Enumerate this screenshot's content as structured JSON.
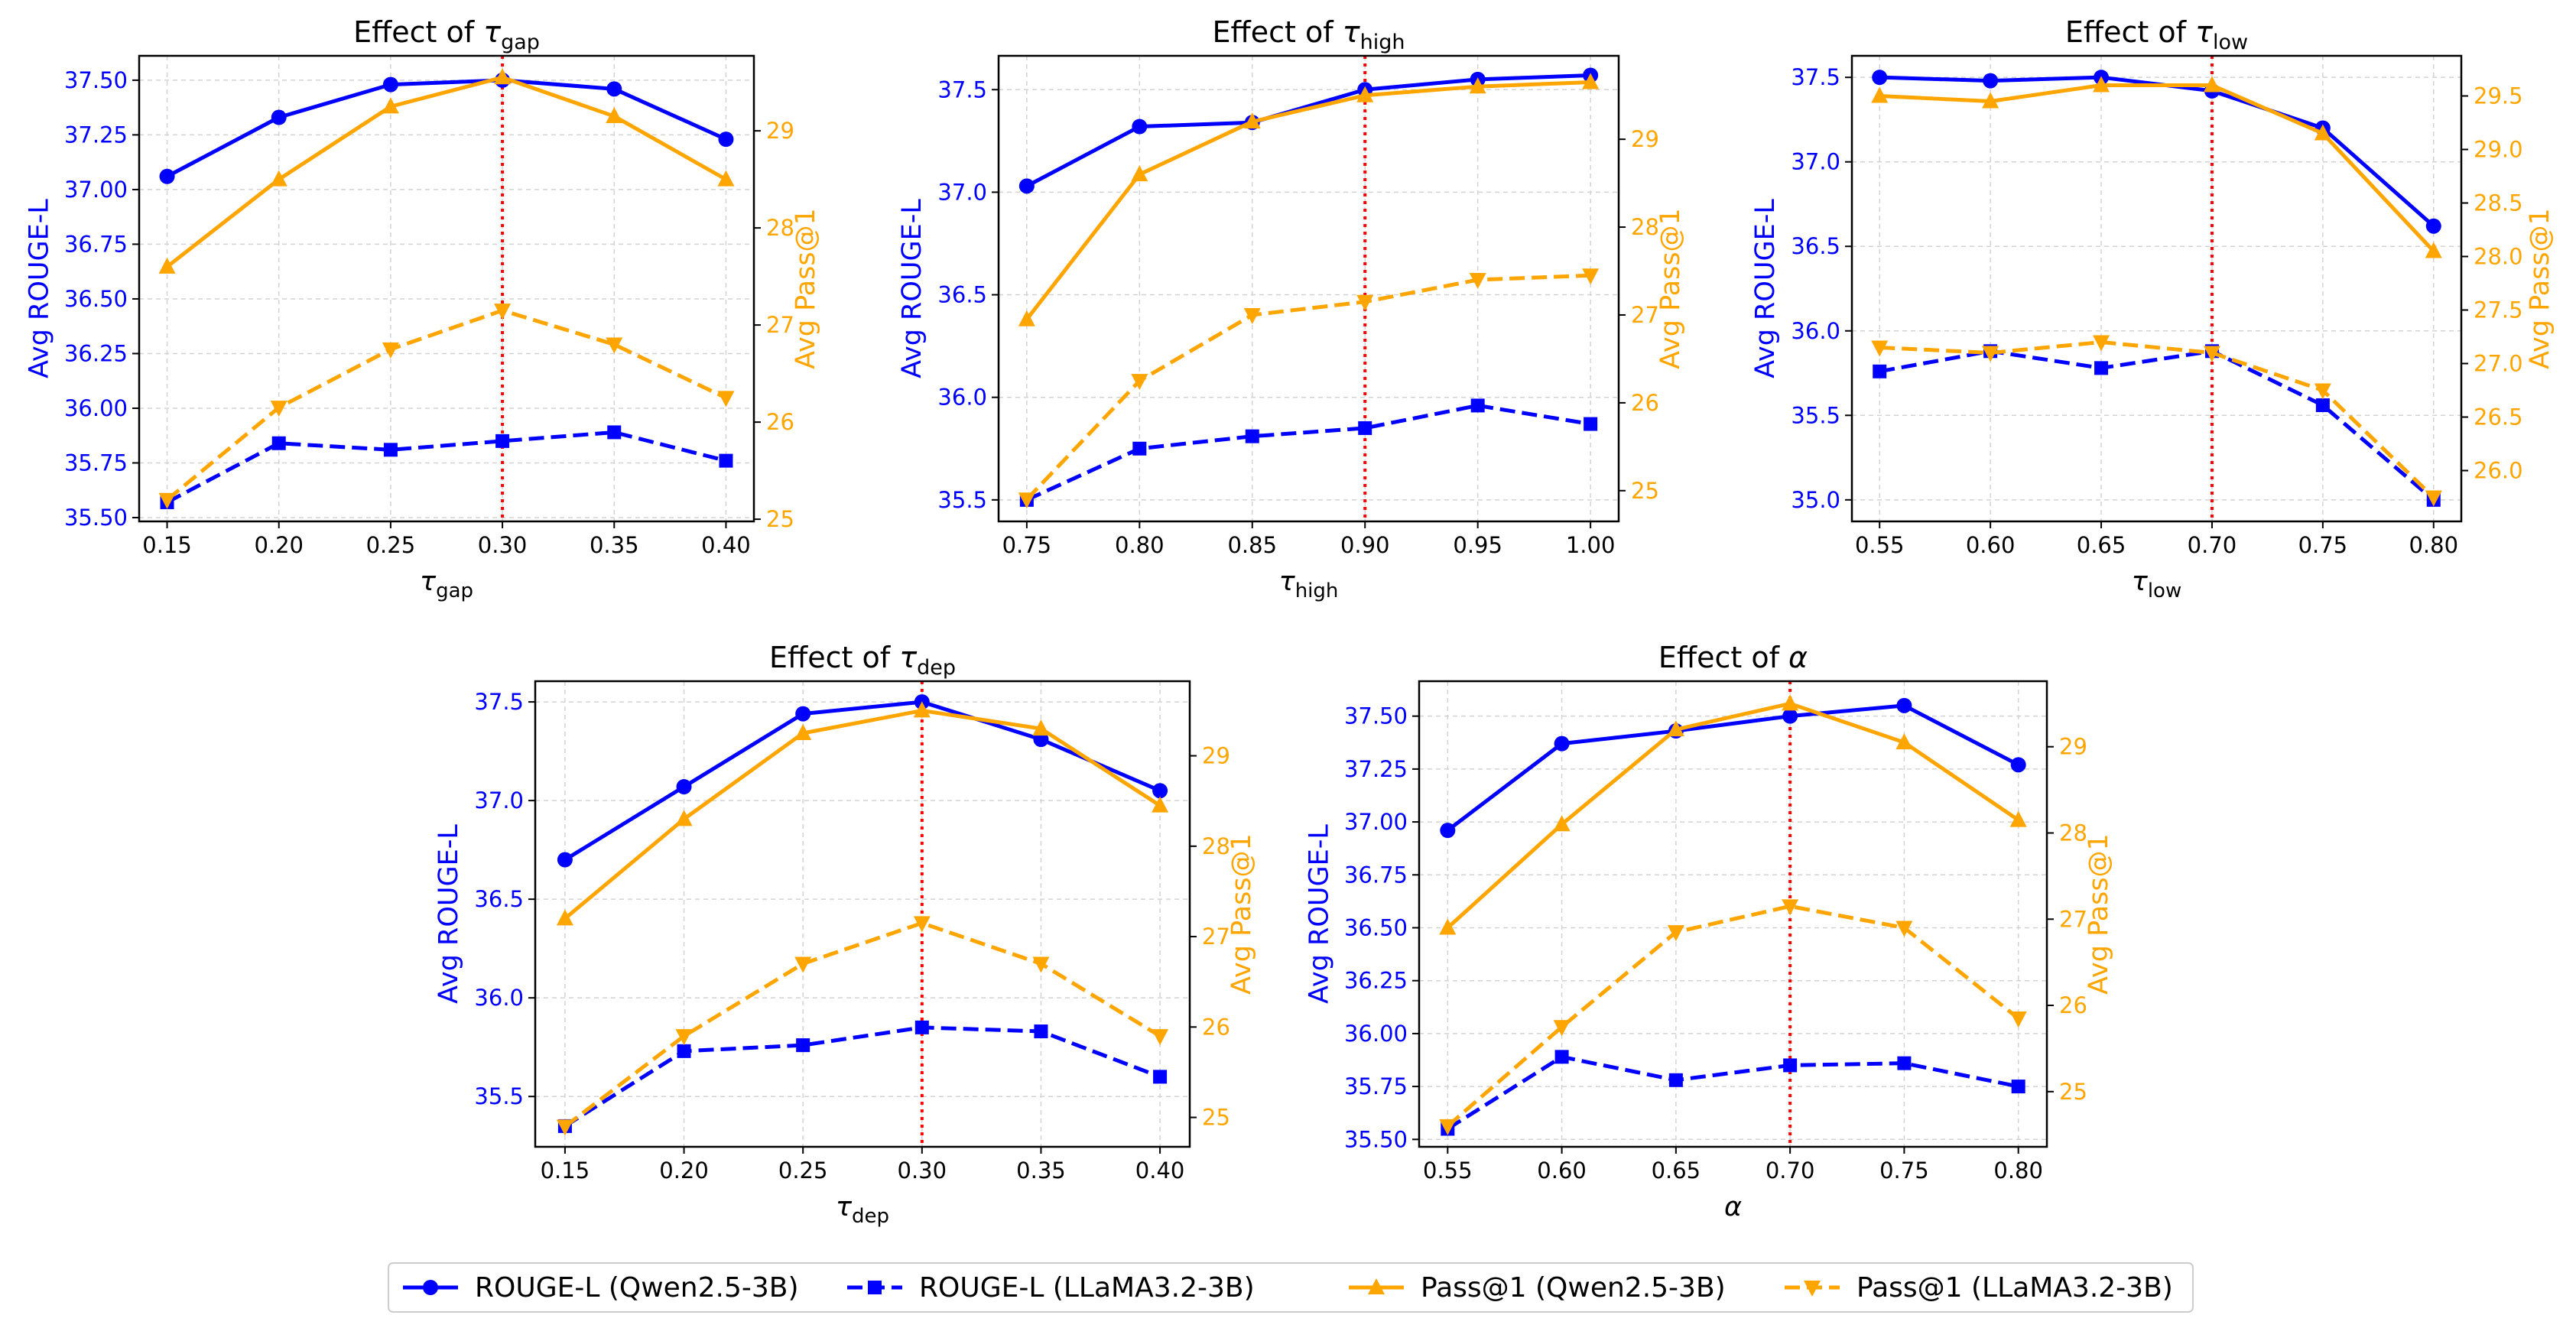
{
  "legend": {
    "entries": [
      {
        "series": "rouge_qwen",
        "label": "ROUGE-L (Qwen2.5-3B)"
      },
      {
        "series": "rouge_llama",
        "label": "ROUGE-L (LLaMA3.2-3B)"
      },
      {
        "series": "pass_qwen",
        "label": "Pass@1 (Qwen2.5-3B)"
      },
      {
        "series": "pass_llama",
        "label": "Pass@1 (LLaMA3.2-3B)"
      }
    ]
  },
  "series_styles": {
    "rouge_qwen": {
      "color": "#0000ff",
      "dash": "solid",
      "marker": "circle",
      "axis": "left"
    },
    "rouge_llama": {
      "color": "#0000ff",
      "dash": "dashed",
      "marker": "square",
      "axis": "left"
    },
    "pass_qwen": {
      "color": "#ffa500",
      "dash": "solid",
      "marker": "triangle-up",
      "axis": "right"
    },
    "pass_llama": {
      "color": "#ffa500",
      "dash": "dashed",
      "marker": "triangle-down",
      "axis": "right"
    }
  },
  "colors": {
    "rouge": "#0000ff",
    "pass": "#ffa500",
    "reference_line": "#ff0000",
    "grid": "#d3d3d3"
  },
  "chart_data": [
    {
      "type": "line",
      "title_prefix": "Effect of ",
      "symbol": "τ",
      "subscript": "gap",
      "xlabel": "τ_gap",
      "ylabel_left": "Avg ROUGE-L",
      "ylabel_right": "Avg Pass@1",
      "x": [
        0.15,
        0.2,
        0.25,
        0.3,
        0.35,
        0.4
      ],
      "xtick_labels": [
        "0.15",
        "0.20",
        "0.25",
        "0.30",
        "0.35",
        "0.40"
      ],
      "xlim": [
        0.1375,
        0.4125
      ],
      "ylim_left": [
        35.4825,
        37.6115
      ],
      "ylim_right": [
        24.9775,
        29.7725
      ],
      "yticks_left": [
        "35.50",
        "35.75",
        "36.00",
        "36.25",
        "36.50",
        "36.75",
        "37.00",
        "37.25",
        "37.50"
      ],
      "yticks_right": [
        "25",
        "26",
        "27",
        "28",
        "29"
      ],
      "reference_x": 0.3,
      "series": [
        {
          "name": "rouge_qwen",
          "values": [
            37.06,
            37.33,
            37.48,
            37.5,
            37.46,
            37.23
          ]
        },
        {
          "name": "rouge_llama",
          "values": [
            35.57,
            35.84,
            35.81,
            35.85,
            35.89,
            35.76
          ]
        },
        {
          "name": "pass_qwen",
          "values": [
            27.6,
            28.5,
            29.25,
            29.55,
            29.15,
            28.5
          ]
        },
        {
          "name": "pass_llama",
          "values": [
            25.2,
            26.15,
            26.75,
            27.15,
            26.8,
            26.25
          ]
        }
      ]
    },
    {
      "type": "line",
      "title_prefix": "Effect of ",
      "symbol": "τ",
      "subscript": "high",
      "xlabel": "τ_high",
      "ylabel_left": "Avg ROUGE-L",
      "ylabel_right": "Avg Pass@1",
      "x": [
        0.75,
        0.8,
        0.85,
        0.9,
        0.95,
        1.0
      ],
      "xtick_labels": [
        "0.75",
        "0.80",
        "0.85",
        "0.90",
        "0.95",
        "1.00"
      ],
      "xlim": [
        0.7375,
        1.0125
      ],
      "ylim_left": [
        35.395,
        37.665
      ],
      "ylim_right": [
        24.65,
        29.95
      ],
      "yticks_left": [
        "35.5",
        "36.0",
        "36.5",
        "37.0",
        "37.5"
      ],
      "yticks_right": [
        "25",
        "26",
        "27",
        "28",
        "29"
      ],
      "reference_x": 0.9,
      "series": [
        {
          "name": "rouge_qwen",
          "values": [
            37.03,
            37.32,
            37.34,
            37.5,
            37.55,
            37.57
          ]
        },
        {
          "name": "rouge_llama",
          "values": [
            35.5,
            35.75,
            35.81,
            35.85,
            35.96,
            35.87
          ]
        },
        {
          "name": "pass_qwen",
          "values": [
            26.95,
            28.6,
            29.2,
            29.5,
            29.6,
            29.65
          ]
        },
        {
          "name": "pass_llama",
          "values": [
            24.9,
            26.25,
            27.0,
            27.15,
            27.4,
            27.45
          ]
        }
      ]
    },
    {
      "type": "line",
      "title_prefix": "Effect of ",
      "symbol": "τ",
      "subscript": "low",
      "xlabel": "τ_low",
      "ylabel_left": "Avg ROUGE-L",
      "ylabel_right": "Avg Pass@1",
      "x": [
        0.55,
        0.6,
        0.65,
        0.7,
        0.75,
        0.8
      ],
      "xtick_labels": [
        "0.55",
        "0.60",
        "0.65",
        "0.70",
        "0.75",
        "0.80"
      ],
      "xlim": [
        0.5375,
        0.8125
      ],
      "ylim_left": [
        34.8725,
        37.6275
      ],
      "ylim_right": [
        25.525,
        29.875
      ],
      "yticks_left": [
        "35.0",
        "35.5",
        "36.0",
        "36.5",
        "37.0",
        "37.5"
      ],
      "yticks_right": [
        "26.0",
        "26.5",
        "27.0",
        "27.5",
        "28.0",
        "28.5",
        "29.0",
        "29.5"
      ],
      "reference_x": 0.7,
      "series": [
        {
          "name": "rouge_qwen",
          "values": [
            37.5,
            37.48,
            37.5,
            37.42,
            37.2,
            36.62
          ]
        },
        {
          "name": "rouge_llama",
          "values": [
            35.76,
            35.88,
            35.78,
            35.88,
            35.56,
            35.0
          ]
        },
        {
          "name": "pass_qwen",
          "values": [
            29.5,
            29.45,
            29.6,
            29.6,
            29.15,
            28.05
          ]
        },
        {
          "name": "pass_llama",
          "values": [
            27.15,
            27.1,
            27.2,
            27.1,
            26.75,
            25.75
          ]
        }
      ]
    },
    {
      "type": "line",
      "title_prefix": "Effect of ",
      "symbol": "τ",
      "subscript": "dep",
      "xlabel": "τ_dep",
      "ylabel_left": "Avg ROUGE-L",
      "ylabel_right": "Avg Pass@1",
      "x": [
        0.15,
        0.2,
        0.25,
        0.3,
        0.35,
        0.4
      ],
      "xtick_labels": [
        "0.15",
        "0.20",
        "0.25",
        "0.30",
        "0.35",
        "0.40"
      ],
      "xlim": [
        0.1375,
        0.4125
      ],
      "ylim_left": [
        35.245,
        37.605
      ],
      "ylim_right": [
        24.675,
        29.825
      ],
      "yticks_left": [
        "35.5",
        "36.0",
        "36.5",
        "37.0",
        "37.5"
      ],
      "yticks_right": [
        "25",
        "26",
        "27",
        "28",
        "29"
      ],
      "reference_x": 0.3,
      "series": [
        {
          "name": "rouge_qwen",
          "values": [
            36.7,
            37.07,
            37.44,
            37.5,
            37.31,
            37.05
          ]
        },
        {
          "name": "rouge_llama",
          "values": [
            35.35,
            35.73,
            35.76,
            35.85,
            35.83,
            35.6
          ]
        },
        {
          "name": "pass_qwen",
          "values": [
            27.2,
            28.3,
            29.25,
            29.5,
            29.3,
            28.45
          ]
        },
        {
          "name": "pass_llama",
          "values": [
            24.9,
            25.9,
            26.7,
            27.15,
            26.7,
            25.9
          ]
        }
      ]
    },
    {
      "type": "line",
      "title_prefix": "Effect of ",
      "symbol": "α",
      "subscript": "",
      "xlabel": "α",
      "ylabel_left": "Avg ROUGE-L",
      "ylabel_right": "Avg Pass@1",
      "x": [
        0.55,
        0.6,
        0.65,
        0.7,
        0.75,
        0.8
      ],
      "xtick_labels": [
        "0.55",
        "0.60",
        "0.65",
        "0.70",
        "0.75",
        "0.80"
      ],
      "xlim": [
        0.5375,
        0.8125
      ],
      "ylim_left": [
        35.465,
        37.665
      ],
      "ylim_right": [
        24.36,
        29.76
      ],
      "yticks_left": [
        "35.50",
        "35.75",
        "36.00",
        "36.25",
        "36.50",
        "36.75",
        "37.00",
        "37.25",
        "37.50"
      ],
      "yticks_right": [
        "25",
        "26",
        "27",
        "28",
        "29"
      ],
      "reference_x": 0.7,
      "series": [
        {
          "name": "rouge_qwen",
          "values": [
            36.96,
            37.37,
            37.43,
            37.5,
            37.55,
            37.27
          ]
        },
        {
          "name": "rouge_llama",
          "values": [
            35.55,
            35.89,
            35.78,
            35.85,
            35.86,
            35.75
          ]
        },
        {
          "name": "pass_qwen",
          "values": [
            26.9,
            28.1,
            29.2,
            29.5,
            29.05,
            28.15
          ]
        },
        {
          "name": "pass_llama",
          "values": [
            24.6,
            25.75,
            26.85,
            27.15,
            26.9,
            25.85
          ]
        }
      ]
    }
  ]
}
